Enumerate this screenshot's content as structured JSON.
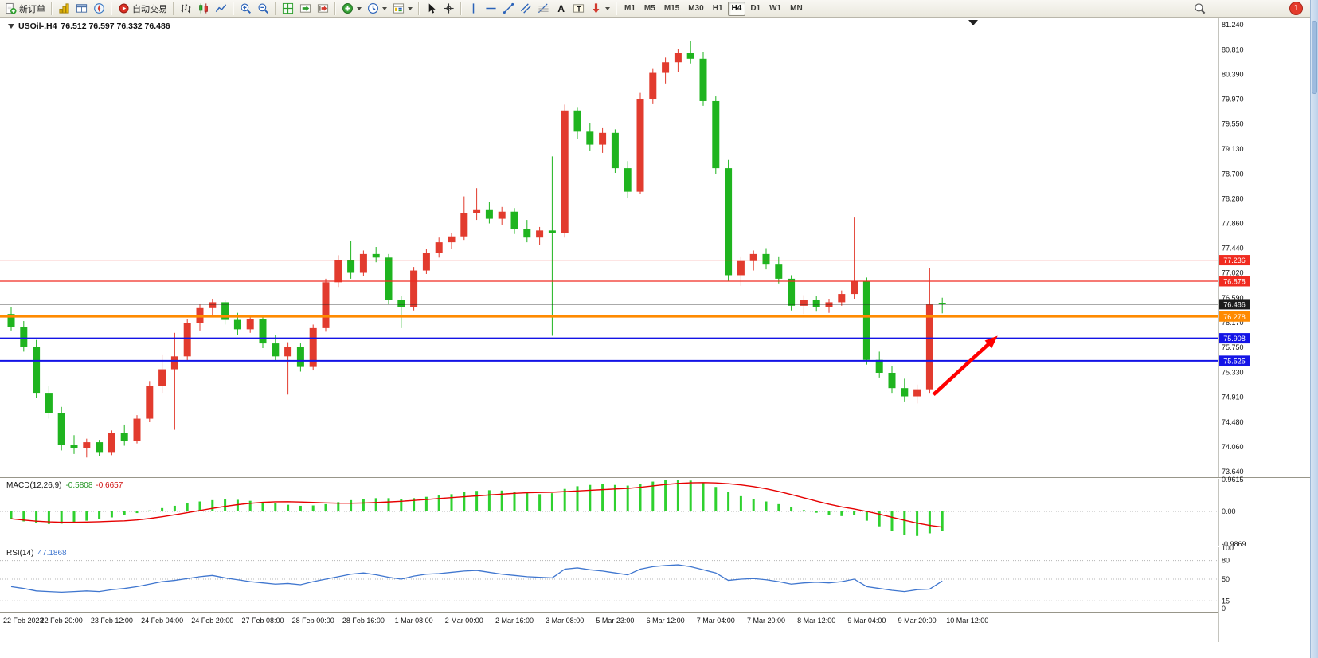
{
  "window": {
    "notification_count": "1"
  },
  "toolbar": {
    "items": [
      {
        "type": "button",
        "name": "new-order-button",
        "icon": "new-order-icon",
        "label": "新订单"
      },
      {
        "type": "sep"
      },
      {
        "type": "button",
        "name": "market-watch-button",
        "icon": "market-watch-icon"
      },
      {
        "type": "button",
        "name": "data-window-button",
        "icon": "data-window-icon"
      },
      {
        "type": "button",
        "name": "navigator-button",
        "icon": "navigator-icon"
      },
      {
        "type": "sep"
      },
      {
        "type": "button",
        "name": "autotrading-button",
        "icon": "autotrading-icon",
        "label": "自动交易"
      },
      {
        "type": "sep"
      },
      {
        "type": "button",
        "name": "bar-chart-button",
        "icon": "bar-chart-icon"
      },
      {
        "type": "button",
        "name": "candlestick-chart-button",
        "icon": "candlestick-icon"
      },
      {
        "type": "button",
        "name": "line-chart-button",
        "icon": "line-chart-icon"
      },
      {
        "type": "sep"
      },
      {
        "type": "button",
        "name": "zoom-in-button",
        "icon": "zoom-in-icon"
      },
      {
        "type": "button",
        "name": "zoom-out-button",
        "icon": "zoom-out-icon"
      },
      {
        "type": "sep"
      },
      {
        "type": "button",
        "name": "tile-windows-button",
        "icon": "tile-windows-icon"
      },
      {
        "type": "button",
        "name": "auto-scroll-button",
        "icon": "auto-scroll-icon"
      },
      {
        "type": "button",
        "name": "chart-shift-button",
        "icon": "chart-shift-icon"
      },
      {
        "type": "sep"
      },
      {
        "type": "button",
        "name": "indicators-button",
        "icon": "indicators-icon",
        "dropdown": true
      },
      {
        "type": "button",
        "name": "periods-button",
        "icon": "periods-icon",
        "dropdown": true
      },
      {
        "type": "button",
        "name": "templates-button",
        "icon": "templates-icon",
        "dropdown": true
      },
      {
        "type": "sep"
      },
      {
        "type": "button",
        "name": "cursor-button",
        "icon": "cursor-icon"
      },
      {
        "type": "button",
        "name": "crosshair-button",
        "icon": "crosshair-icon"
      },
      {
        "type": "sep"
      },
      {
        "type": "button",
        "name": "vertical-line-button",
        "icon": "vertical-line-icon"
      },
      {
        "type": "button",
        "name": "horizontal-line-button",
        "icon": "horizontal-line-icon"
      },
      {
        "type": "button",
        "name": "trendline-button",
        "icon": "trendline-icon"
      },
      {
        "type": "button",
        "name": "equidistant-channel-button",
        "icon": "channel-icon"
      },
      {
        "type": "button",
        "name": "fibonacci-button",
        "icon": "fibonacci-icon"
      },
      {
        "type": "button",
        "name": "text-button",
        "icon": "text-icon"
      },
      {
        "type": "button",
        "name": "text-label-button",
        "icon": "text-label-icon"
      },
      {
        "type": "button",
        "name": "arrows-button",
        "icon": "arrows-icon",
        "dropdown": true
      },
      {
        "type": "sep"
      }
    ],
    "timeframes": [
      {
        "label": "M1"
      },
      {
        "label": "M5"
      },
      {
        "label": "M15"
      },
      {
        "label": "M30"
      },
      {
        "label": "H1"
      },
      {
        "label": "H4",
        "active": true
      },
      {
        "label": "D1"
      },
      {
        "label": "W1"
      },
      {
        "label": "MN"
      }
    ]
  },
  "chart_data": {
    "type": "candlestick",
    "symbol_label": "USOil-,H4",
    "ohlc_label": "76.512 76.597 76.332 76.486",
    "price_axis": [
      "81.240",
      "80.810",
      "80.390",
      "79.970",
      "79.550",
      "79.130",
      "78.700",
      "78.280",
      "77.860",
      "77.440",
      "77.020",
      "76.590",
      "76.170",
      "75.750",
      "75.330",
      "74.910",
      "74.480",
      "74.060",
      "73.640"
    ],
    "time_labels": [
      "22 Feb 2023",
      "22 Feb 20:00",
      "23 Feb 12:00",
      "24 Feb 04:00",
      "24 Feb 20:00",
      "27 Feb 08:00",
      "28 Feb 00:00",
      "28 Feb 16:00",
      "1 Mar 08:00",
      "2 Mar 00:00",
      "2 Mar 16:00",
      "3 Mar 08:00",
      "5 Mar 23:00",
      "6 Mar 12:00",
      "7 Mar 04:00",
      "7 Mar 20:00",
      "8 Mar 12:00",
      "9 Mar 04:00",
      "9 Mar 20:00",
      "10 Mar 12:00"
    ],
    "candles": [
      [
        76.32,
        76.44,
        76.04,
        76.1
      ],
      [
        76.1,
        76.2,
        75.68,
        75.76
      ],
      [
        75.76,
        75.88,
        74.9,
        74.98
      ],
      [
        74.98,
        75.1,
        74.54,
        74.64
      ],
      [
        74.64,
        74.74,
        74.0,
        74.1
      ],
      [
        74.1,
        74.26,
        73.94,
        74.04
      ],
      [
        74.04,
        74.2,
        73.88,
        74.14
      ],
      [
        74.14,
        74.18,
        73.9,
        73.96
      ],
      [
        73.96,
        74.34,
        73.92,
        74.3
      ],
      [
        74.3,
        74.44,
        74.08,
        74.16
      ],
      [
        74.16,
        74.6,
        74.12,
        74.54
      ],
      [
        74.54,
        75.18,
        74.48,
        75.1
      ],
      [
        75.1,
        75.62,
        74.98,
        75.38
      ],
      [
        75.38,
        76.0,
        74.35,
        75.6
      ],
      [
        75.6,
        76.24,
        75.52,
        76.16
      ],
      [
        76.16,
        76.48,
        76.04,
        76.42
      ],
      [
        76.42,
        76.58,
        76.28,
        76.52
      ],
      [
        76.52,
        76.56,
        76.14,
        76.22
      ],
      [
        76.22,
        76.34,
        75.96,
        76.06
      ],
      [
        76.06,
        76.3,
        76.0,
        76.24
      ],
      [
        76.24,
        76.28,
        75.74,
        75.82
      ],
      [
        75.82,
        75.96,
        75.52,
        75.6
      ],
      [
        75.6,
        75.84,
        74.95,
        75.76
      ],
      [
        75.76,
        75.82,
        75.34,
        75.42
      ],
      [
        75.42,
        76.14,
        75.36,
        76.08
      ],
      [
        76.08,
        76.92,
        76.02,
        76.86
      ],
      [
        76.86,
        77.32,
        76.78,
        77.24
      ],
      [
        77.24,
        77.56,
        76.92,
        77.02
      ],
      [
        77.02,
        77.4,
        76.96,
        77.34
      ],
      [
        77.34,
        77.46,
        77.2,
        77.28
      ],
      [
        77.28,
        77.34,
        76.48,
        76.56
      ],
      [
        76.56,
        76.62,
        76.08,
        76.44
      ],
      [
        76.44,
        77.12,
        76.38,
        77.06
      ],
      [
        77.06,
        77.42,
        77.0,
        77.36
      ],
      [
        77.36,
        77.62,
        77.28,
        77.54
      ],
      [
        77.54,
        77.7,
        77.42,
        77.64
      ],
      [
        77.64,
        78.32,
        77.58,
        78.04
      ],
      [
        78.04,
        78.46,
        77.92,
        78.1
      ],
      [
        78.1,
        78.22,
        77.86,
        77.94
      ],
      [
        77.94,
        78.14,
        77.84,
        78.06
      ],
      [
        78.06,
        78.12,
        77.68,
        77.76
      ],
      [
        77.76,
        77.92,
        77.54,
        77.62
      ],
      [
        77.62,
        77.8,
        77.5,
        77.74
      ],
      [
        77.74,
        79.0,
        75.95,
        77.7
      ],
      [
        77.7,
        79.88,
        77.62,
        79.78
      ],
      [
        79.78,
        79.84,
        79.3,
        79.42
      ],
      [
        79.42,
        79.56,
        79.1,
        79.2
      ],
      [
        79.2,
        79.48,
        79.06,
        79.4
      ],
      [
        79.4,
        79.46,
        78.72,
        78.8
      ],
      [
        78.8,
        78.92,
        78.3,
        78.4
      ],
      [
        78.4,
        80.08,
        78.36,
        79.98
      ],
      [
        79.98,
        80.5,
        79.9,
        80.42
      ],
      [
        80.42,
        80.68,
        80.24,
        80.6
      ],
      [
        80.6,
        80.82,
        80.44,
        80.76
      ],
      [
        80.76,
        80.96,
        80.58,
        80.66
      ],
      [
        80.66,
        80.78,
        79.86,
        79.94
      ],
      [
        79.94,
        80.02,
        78.7,
        78.8
      ],
      [
        78.8,
        78.94,
        76.88,
        76.98
      ],
      [
        76.98,
        77.3,
        76.8,
        77.22
      ],
      [
        77.22,
        77.4,
        77.06,
        77.34
      ],
      [
        77.34,
        77.44,
        77.08,
        77.16
      ],
      [
        77.16,
        77.3,
        76.84,
        76.92
      ],
      [
        76.92,
        76.98,
        76.38,
        76.46
      ],
      [
        76.46,
        76.64,
        76.32,
        76.56
      ],
      [
        76.56,
        76.62,
        76.36,
        76.44
      ],
      [
        76.44,
        76.58,
        76.34,
        76.52
      ],
      [
        76.52,
        76.72,
        76.46,
        76.66
      ],
      [
        76.66,
        77.96,
        76.58,
        76.88
      ],
      [
        76.88,
        76.94,
        75.46,
        75.54
      ],
      [
        75.54,
        75.68,
        75.24,
        75.32
      ],
      [
        75.32,
        75.44,
        74.98,
        75.06
      ],
      [
        75.06,
        75.22,
        74.82,
        74.92
      ],
      [
        74.92,
        75.12,
        74.8,
        75.04
      ],
      [
        75.04,
        77.1,
        74.98,
        76.48
      ],
      [
        76.512,
        76.597,
        76.332,
        76.486
      ]
    ],
    "hlines": [
      {
        "price": 77.236,
        "label": "77.236",
        "color": "#f02b20",
        "width": 1.2
      },
      {
        "price": 76.878,
        "label": "76.878",
        "color": "#f02b20",
        "width": 1.2
      },
      {
        "price": 76.486,
        "label": "76.486",
        "color": "#1c1c1c",
        "width": 1
      },
      {
        "price": 76.278,
        "label": "76.278",
        "color": "#ff8a00",
        "width": 2.6
      },
      {
        "price": 75.908,
        "label": "75.908",
        "color": "#1414e6",
        "width": 2
      },
      {
        "price": 75.525,
        "label": "75.525",
        "color": "#1414e6",
        "width": 2
      }
    ],
    "colors": {
      "up": "#e23b2e",
      "down": "#1fb41f",
      "macd_hist": "#2fd12f",
      "macd_signal": "#e60000",
      "rsi": "#3f76cf"
    },
    "macd": {
      "name": "MACD(12,26,9)",
      "value_main": "-0.5808",
      "value_signal": "-0.6657",
      "scale": [
        "0.9615",
        "0.00",
        "-0.9869"
      ],
      "hist": [
        -0.22,
        -0.3,
        -0.36,
        -0.38,
        -0.37,
        -0.33,
        -0.28,
        -0.24,
        -0.18,
        -0.12,
        -0.05,
        0.03,
        0.1,
        0.17,
        0.24,
        0.3,
        0.34,
        0.36,
        0.35,
        0.32,
        0.28,
        0.24,
        0.2,
        0.17,
        0.18,
        0.22,
        0.28,
        0.34,
        0.38,
        0.4,
        0.4,
        0.38,
        0.4,
        0.44,
        0.48,
        0.52,
        0.58,
        0.62,
        0.64,
        0.63,
        0.6,
        0.56,
        0.52,
        0.55,
        0.68,
        0.76,
        0.8,
        0.82,
        0.8,
        0.78,
        0.84,
        0.9,
        0.94,
        0.96,
        0.93,
        0.86,
        0.74,
        0.58,
        0.46,
        0.38,
        0.3,
        0.22,
        0.12,
        0.04,
        -0.04,
        -0.1,
        -0.14,
        -0.12,
        -0.28,
        -0.45,
        -0.6,
        -0.7,
        -0.74,
        -0.66,
        -0.58
      ]
    },
    "rsi": {
      "name": "RSI(14)",
      "value": "47.1868",
      "scale": [
        "100",
        "80",
        "50",
        "15",
        "0"
      ],
      "levels": [
        80,
        50,
        15
      ],
      "values": [
        38,
        35,
        31,
        30,
        29,
        30,
        31,
        30,
        33,
        35,
        38,
        42,
        46,
        48,
        51,
        54,
        56,
        52,
        49,
        46,
        44,
        42,
        43,
        41,
        46,
        50,
        54,
        58,
        60,
        57,
        53,
        50,
        55,
        58,
        59,
        61,
        63,
        64,
        61,
        58,
        56,
        54,
        53,
        52,
        66,
        68,
        65,
        63,
        60,
        57,
        66,
        70,
        72,
        73,
        70,
        65,
        60,
        48,
        50,
        51,
        49,
        46,
        42,
        44,
        45,
        44,
        46,
        50,
        38,
        35,
        32,
        30,
        33,
        34,
        47
      ]
    },
    "arrow": {
      "color": "#ff0000",
      "from": {
        "index": 73.3,
        "price": 74.95
      },
      "to": {
        "index": 78.4,
        "price": 75.95
      }
    }
  }
}
